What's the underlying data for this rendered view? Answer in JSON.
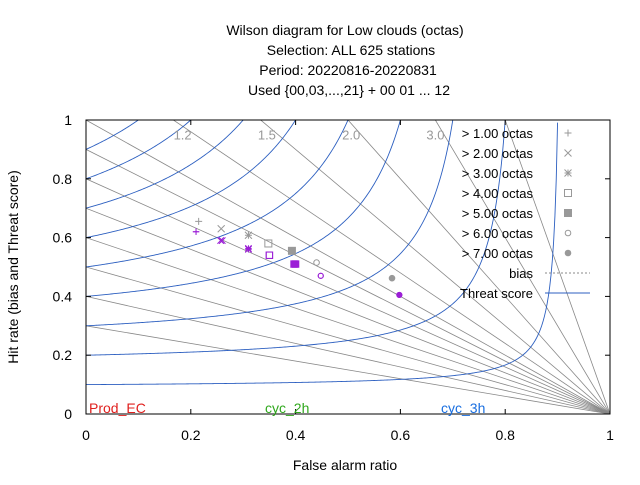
{
  "title_lines": [
    "Wilson diagram  for Low clouds (octas)",
    "Selection: ALL    625 stations",
    "Period: 20220816-20220831",
    "Used {00,03,...,21} + 00 01 ... 12"
  ],
  "colors": {
    "threat_line": "#2c5fc0",
    "bias_line": "#888888",
    "gray_marker": "#999999",
    "series_marker": "#9b1fd6",
    "prod_ec": "#e0201e",
    "cyc_2h": "#2fa81c",
    "cyc_3h": "#1a6fe0"
  },
  "footer_labels": {
    "prod_ec": "Prod_EC",
    "cyc_2h": "cyc_2h",
    "cyc_3h": "cyc_3h"
  },
  "chart_data": {
    "type": "scatter",
    "xlabel": "False alarm ratio",
    "ylabel": "Hit rate (bias and Threat score)",
    "xlim": [
      0,
      1
    ],
    "ylim": [
      0,
      1
    ],
    "xticks": [
      "0",
      "0.2",
      "0.4",
      "0.6",
      "0.8",
      "1"
    ],
    "yticks": [
      "0",
      "0.2",
      "0.4",
      "0.6",
      "0.8",
      "1"
    ],
    "grid": false,
    "legend_position": "top-right",
    "bias_isolines": [
      0.3,
      0.4,
      0.5,
      0.6,
      0.7,
      0.8,
      0.9,
      1.0,
      1.2,
      1.5,
      2.0,
      3.0,
      5.0
    ],
    "bias_labels": [
      {
        "text": "1.2",
        "value": 1.2
      },
      {
        "text": "1.5",
        "value": 1.5
      },
      {
        "text": "2.0",
        "value": 2.0
      },
      {
        "text": "3.0",
        "value": 3.0
      }
    ],
    "threat_isolines": [
      0.1,
      0.2,
      0.3,
      0.4,
      0.5,
      0.6,
      0.7,
      0.8,
      0.9
    ],
    "legend": [
      {
        "label": "> 1.00 octas",
        "symbol": "plus"
      },
      {
        "label": "> 2.00 octas",
        "symbol": "cross"
      },
      {
        "label": "> 3.00 octas",
        "symbol": "star"
      },
      {
        "label": "> 4.00 octas",
        "symbol": "square"
      },
      {
        "label": "> 5.00 octas",
        "symbol": "filled-square"
      },
      {
        "label": "> 6.00 octas",
        "symbol": "circle"
      },
      {
        "label": "> 7.00 octas",
        "symbol": "filled-circle"
      },
      {
        "label": "bias",
        "symbol": "dotted-line"
      },
      {
        "label": "Threat score",
        "symbol": "solid-line"
      }
    ],
    "series": [
      {
        "name": "Prod_EC",
        "points": [
          {
            "threshold": "> 1.00 octas",
            "x": 0.215,
            "y": 0.655
          },
          {
            "threshold": "> 2.00 octas",
            "x": 0.258,
            "y": 0.63
          },
          {
            "threshold": "> 3.00 octas",
            "x": 0.31,
            "y": 0.608
          },
          {
            "threshold": "> 4.00 octas",
            "x": 0.348,
            "y": 0.58
          },
          {
            "threshold": "> 5.00 octas",
            "x": 0.393,
            "y": 0.555
          },
          {
            "threshold": "> 6.00 octas",
            "x": 0.44,
            "y": 0.515
          },
          {
            "threshold": "> 7.00 octas",
            "x": 0.584,
            "y": 0.462
          }
        ]
      },
      {
        "name": "cyc_2h",
        "points": [
          {
            "threshold": "> 1.00 octas",
            "x": 0.21,
            "y": 0.62
          },
          {
            "threshold": "> 2.00 octas",
            "x": 0.257,
            "y": 0.59
          },
          {
            "threshold": "> 3.00 octas",
            "x": 0.31,
            "y": 0.563
          },
          {
            "threshold": "> 4.00 octas",
            "x": 0.35,
            "y": 0.54
          },
          {
            "threshold": "> 5.00 octas",
            "x": 0.397,
            "y": 0.51
          },
          {
            "threshold": "> 6.00 octas",
            "x": 0.448,
            "y": 0.47
          },
          {
            "threshold": "> 7.00 octas",
            "x": 0.598,
            "y": 0.405
          }
        ]
      },
      {
        "name": "cyc_3h",
        "points": [
          {
            "threshold": "> 1.00 octas",
            "x": 0.21,
            "y": 0.62
          },
          {
            "threshold": "> 2.00 octas",
            "x": 0.26,
            "y": 0.59
          },
          {
            "threshold": "> 3.00 octas",
            "x": 0.31,
            "y": 0.56
          },
          {
            "threshold": "> 4.00 octas",
            "x": 0.35,
            "y": 0.54
          },
          {
            "threshold": "> 5.00 octas",
            "x": 0.4,
            "y": 0.51
          },
          {
            "threshold": "> 6.00 octas",
            "x": 0.448,
            "y": 0.47
          },
          {
            "threshold": "> 7.00 octas",
            "x": 0.598,
            "y": 0.405
          }
        ]
      }
    ]
  }
}
